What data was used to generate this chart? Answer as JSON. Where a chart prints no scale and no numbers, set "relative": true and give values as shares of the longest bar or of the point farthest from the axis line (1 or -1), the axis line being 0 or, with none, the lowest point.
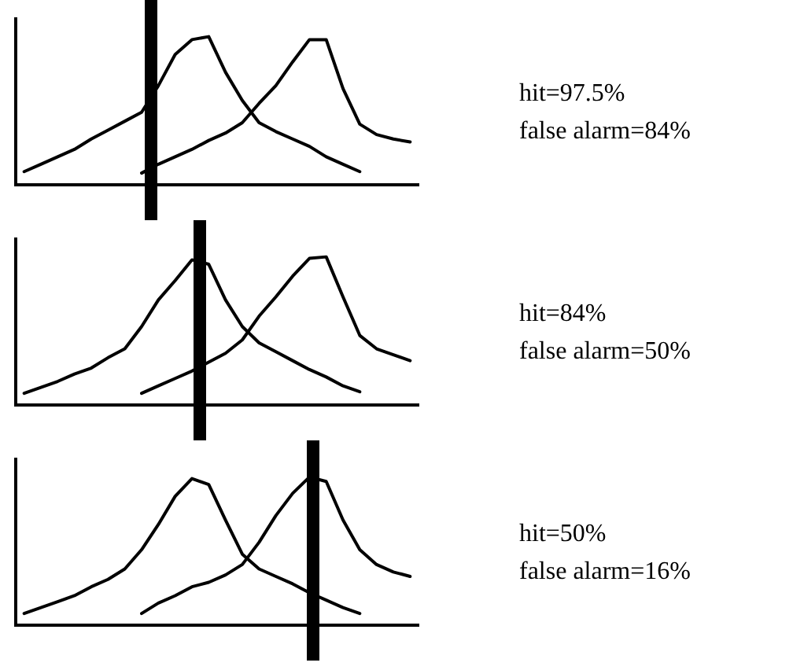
{
  "chart_data": [
    {
      "type": "line",
      "relative": true,
      "categories": [
        null,
        null,
        null,
        null,
        null,
        null,
        null,
        null,
        null,
        null,
        null,
        null,
        null,
        null,
        null,
        null,
        null,
        null,
        null,
        null,
        null,
        null,
        null,
        null
      ],
      "grid": false,
      "legend": false,
      "marker": "none",
      "line_style": "solid",
      "series": [
        {
          "color": "#000000",
          "values": [
            0.09,
            0.14,
            0.19,
            0.24,
            0.31,
            0.37,
            0.43,
            0.49,
            0.67,
            0.88,
            0.98,
            1.0,
            0.76,
            0.57,
            0.42,
            0.36,
            0.31,
            0.26,
            0.19,
            0.14,
            0.09,
            null,
            null,
            null
          ]
        },
        {
          "color": "#000000",
          "values": [
            null,
            null,
            null,
            null,
            null,
            null,
            null,
            0.08,
            0.14,
            0.19,
            0.24,
            0.3,
            0.35,
            0.42,
            0.55,
            0.67,
            0.83,
            0.98,
            0.98,
            0.65,
            0.41,
            0.34,
            0.31,
            0.29
          ]
        }
      ],
      "annotations": [
        "hit=97.5%",
        "false alarm=84%"
      ]
    },
    {
      "type": "line",
      "relative": true,
      "categories": [
        null,
        null,
        null,
        null,
        null,
        null,
        null,
        null,
        null,
        null,
        null,
        null,
        null,
        null,
        null,
        null,
        null,
        null,
        null,
        null,
        null,
        null,
        null,
        null
      ],
      "grid": false,
      "legend": false,
      "marker": "none",
      "line_style": "solid",
      "series": [
        {
          "color": "#000000",
          "values": [
            0.08,
            0.12,
            0.16,
            0.21,
            0.25,
            0.32,
            0.38,
            0.53,
            0.71,
            0.84,
            0.98,
            0.95,
            0.71,
            0.53,
            0.42,
            0.36,
            0.3,
            0.24,
            0.19,
            0.13,
            0.09,
            null,
            null,
            null
          ]
        },
        {
          "color": "#000000",
          "values": [
            null,
            null,
            null,
            null,
            null,
            null,
            null,
            0.08,
            0.13,
            0.18,
            0.23,
            0.29,
            0.35,
            0.44,
            0.6,
            0.73,
            0.87,
            0.99,
            1.0,
            0.73,
            0.47,
            0.38,
            0.34,
            0.3
          ]
        }
      ],
      "annotations": [
        "hit=84%",
        "false alarm=50%"
      ]
    },
    {
      "type": "line",
      "relative": true,
      "categories": [
        null,
        null,
        null,
        null,
        null,
        null,
        null,
        null,
        null,
        null,
        null,
        null,
        null,
        null,
        null,
        null,
        null,
        null,
        null,
        null,
        null,
        null,
        null,
        null
      ],
      "grid": false,
      "legend": false,
      "marker": "none",
      "line_style": "solid",
      "series": [
        {
          "color": "#000000",
          "values": [
            0.08,
            0.12,
            0.16,
            0.2,
            0.26,
            0.31,
            0.38,
            0.51,
            0.68,
            0.87,
            0.99,
            0.95,
            0.71,
            0.48,
            0.38,
            0.33,
            0.28,
            0.22,
            0.17,
            0.12,
            0.08,
            null,
            null,
            null
          ]
        },
        {
          "color": "#000000",
          "values": [
            null,
            null,
            null,
            null,
            null,
            null,
            null,
            0.08,
            0.15,
            0.2,
            0.26,
            0.29,
            0.34,
            0.41,
            0.56,
            0.74,
            0.89,
            1.0,
            0.97,
            0.71,
            0.51,
            0.41,
            0.36,
            0.33
          ]
        }
      ],
      "annotations": [
        "hit=50%",
        "false alarm=16%"
      ]
    }
  ]
}
